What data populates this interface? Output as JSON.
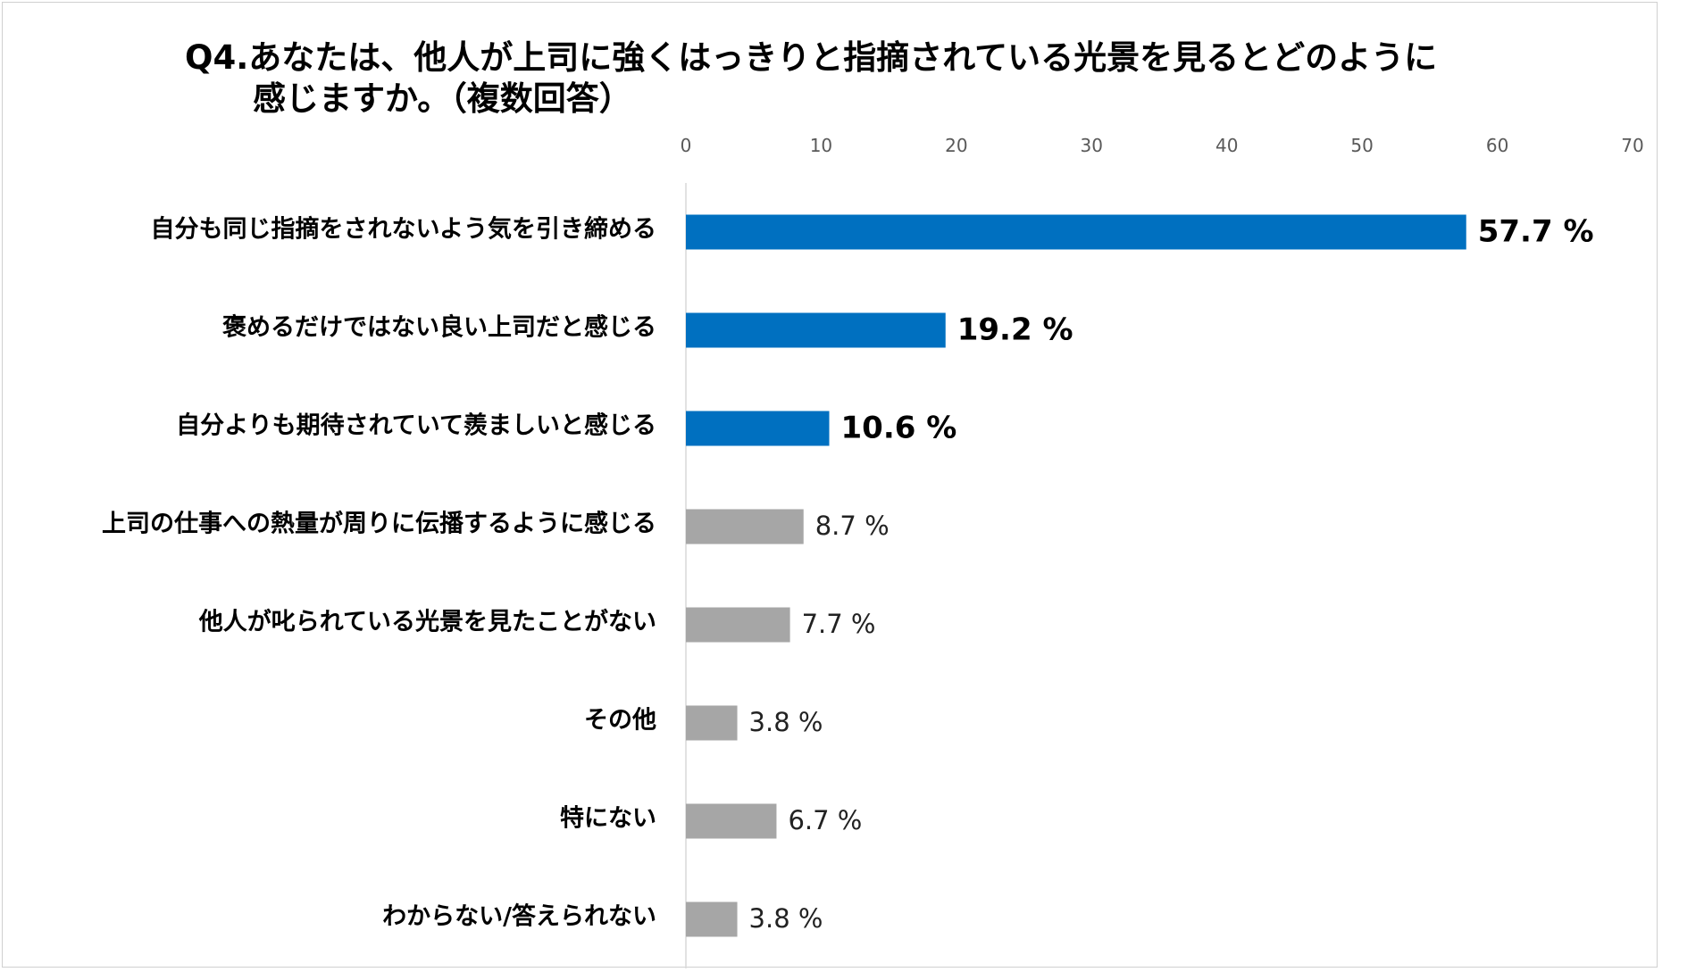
{
  "title_line1": "Q4.あなたは、他人が上司に強くはっきりと指摘されている光景を見るとどのように",
  "title_line2": "感じますか。（複数回答）",
  "colors": {
    "highlight": "#0070C0",
    "other": "#A6A6A6",
    "axis_text": "#595959"
  },
  "chart_data": {
    "type": "bar",
    "orientation": "horizontal",
    "xlim": [
      0,
      70
    ],
    "ticks": [
      0,
      10,
      20,
      30,
      40,
      50,
      60,
      70
    ],
    "tick_position": "top",
    "grid": false,
    "unit_suffix": " %",
    "categories": [
      "自分も同じ指摘をされないよう気を引き締める",
      "褒めるだけではない良い上司だと感じる",
      "自分よりも期待されていて羨ましいと感じる",
      "上司の仕事への熱量が周りに伝播するように感じる",
      "他人が叱られている光景を見たことがない",
      "その他",
      "特にない",
      "わからない/答えられない"
    ],
    "values": [
      57.7,
      19.2,
      10.6,
      8.7,
      7.7,
      3.8,
      6.7,
      3.8
    ],
    "highlighted": [
      true,
      true,
      true,
      false,
      false,
      false,
      false,
      false
    ]
  }
}
